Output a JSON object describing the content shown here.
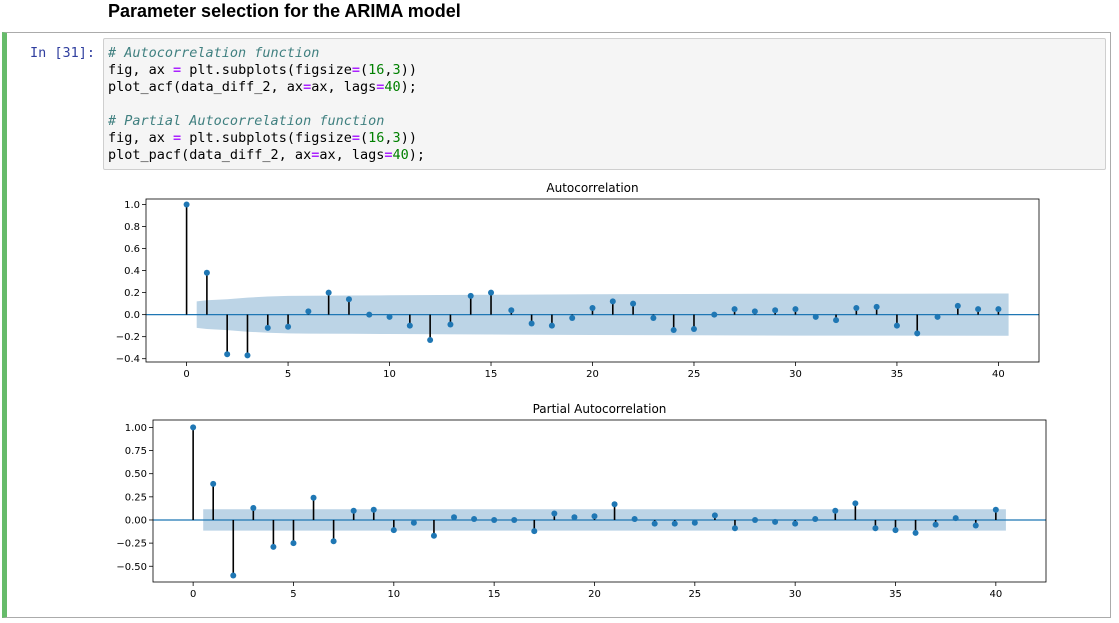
{
  "heading": "Parameter selection for the ARIMA model",
  "cell": {
    "prompt": "In [31]:",
    "code_lines": [
      [
        {
          "t": "# Autocorrelation function",
          "c": "comment"
        }
      ],
      [
        {
          "t": "fig, ax "
        },
        {
          "t": "=",
          "c": "op"
        },
        {
          "t": " plt.subplots(figsize"
        },
        {
          "t": "=",
          "c": "op"
        },
        {
          "t": "("
        },
        {
          "t": "16",
          "c": "num"
        },
        {
          "t": ","
        },
        {
          "t": "3",
          "c": "num"
        },
        {
          "t": "))"
        }
      ],
      [
        {
          "t": "plot_acf(data_diff_2, ax"
        },
        {
          "t": "=",
          "c": "op"
        },
        {
          "t": "ax, lags"
        },
        {
          "t": "=",
          "c": "op"
        },
        {
          "t": "40",
          "c": "num"
        },
        {
          "t": ");"
        }
      ],
      [],
      [
        {
          "t": "# Partial Autocorrelation function",
          "c": "comment"
        }
      ],
      [
        {
          "t": "fig, ax "
        },
        {
          "t": "=",
          "c": "op"
        },
        {
          "t": " plt.subplots(figsize"
        },
        {
          "t": "=",
          "c": "op"
        },
        {
          "t": "("
        },
        {
          "t": "16",
          "c": "num"
        },
        {
          "t": ","
        },
        {
          "t": "3",
          "c": "num"
        },
        {
          "t": "))"
        }
      ],
      [
        {
          "t": "plot_pacf(data_diff_2, ax"
        },
        {
          "t": "=",
          "c": "op"
        },
        {
          "t": "ax, lags"
        },
        {
          "t": "=",
          "c": "op"
        },
        {
          "t": "40",
          "c": "num"
        },
        {
          "t": ");"
        }
      ]
    ]
  },
  "colors": {
    "stem": "#000000",
    "marker": "#1f77b4",
    "band": "#bcd4e6",
    "zero_line": "#1f77b4"
  },
  "chart_data": [
    {
      "type": "scatter",
      "title": "Autocorrelation",
      "xlim": [
        -2,
        42
      ],
      "ylim": [
        -0.43,
        1.05
      ],
      "xticks": [
        0,
        5,
        10,
        15,
        20,
        25,
        30,
        35,
        40
      ],
      "yticks": [
        -0.4,
        -0.2,
        0.0,
        0.2,
        0.4,
        0.6,
        0.8,
        1.0
      ],
      "ytick_labels": [
        "−0.4",
        "−0.2",
        "0.0",
        "0.2",
        "0.4",
        "0.6",
        "0.8",
        "1.0"
      ],
      "x": [
        0,
        1,
        2,
        3,
        4,
        5,
        6,
        7,
        8,
        9,
        10,
        11,
        12,
        13,
        14,
        15,
        16,
        17,
        18,
        19,
        20,
        21,
        22,
        23,
        24,
        25,
        26,
        27,
        28,
        29,
        30,
        31,
        32,
        33,
        34,
        35,
        36,
        37,
        38,
        39,
        40
      ],
      "values": [
        1.0,
        0.38,
        -0.36,
        -0.37,
        -0.12,
        -0.11,
        0.03,
        0.2,
        0.14,
        0.0,
        -0.02,
        -0.1,
        -0.23,
        -0.09,
        0.17,
        0.2,
        0.04,
        -0.08,
        -0.1,
        -0.03,
        0.06,
        0.12,
        0.1,
        -0.03,
        -0.14,
        -0.13,
        0.0,
        0.05,
        0.03,
        0.04,
        0.05,
        -0.02,
        -0.05,
        0.06,
        0.07,
        -0.1,
        -0.17,
        -0.02,
        0.08,
        0.05,
        0.05
      ],
      "confidence_band": {
        "x": [
          0.5,
          1,
          2,
          3,
          4,
          5,
          6,
          8,
          10,
          15,
          20,
          25,
          30,
          35,
          40,
          40.5
        ],
        "upper": [
          0.12,
          0.13,
          0.14,
          0.155,
          0.165,
          0.17,
          0.172,
          0.174,
          0.176,
          0.18,
          0.185,
          0.187,
          0.19,
          0.19,
          0.192,
          0.192
        ]
      }
    },
    {
      "type": "scatter",
      "title": "Partial Autocorrelation",
      "xlim": [
        -2,
        42.5
      ],
      "ylim": [
        -0.67,
        1.08
      ],
      "xticks": [
        0,
        5,
        10,
        15,
        20,
        25,
        30,
        35,
        40
      ],
      "yticks": [
        -0.5,
        -0.25,
        0.0,
        0.25,
        0.5,
        0.75,
        1.0
      ],
      "ytick_labels": [
        "−0.50",
        "−0.25",
        "0.00",
        "0.25",
        "0.50",
        "0.75",
        "1.00"
      ],
      "x": [
        0,
        1,
        2,
        3,
        4,
        5,
        6,
        7,
        8,
        9,
        10,
        11,
        12,
        13,
        14,
        15,
        16,
        17,
        18,
        19,
        20,
        21,
        22,
        23,
        24,
        25,
        26,
        27,
        28,
        29,
        30,
        31,
        32,
        33,
        34,
        35,
        36,
        37,
        38,
        39,
        40
      ],
      "values": [
        1.0,
        0.39,
        -0.6,
        0.13,
        -0.29,
        -0.25,
        0.24,
        -0.23,
        0.1,
        0.11,
        -0.11,
        -0.03,
        -0.17,
        0.03,
        0.01,
        0.0,
        0.0,
        -0.12,
        0.07,
        0.03,
        0.04,
        0.17,
        0.01,
        -0.04,
        -0.04,
        -0.03,
        0.05,
        -0.09,
        0.0,
        -0.02,
        -0.04,
        0.01,
        0.1,
        0.18,
        -0.09,
        -0.11,
        -0.14,
        -0.05,
        0.02,
        -0.06,
        0.11
      ],
      "confidence_band": {
        "x": [
          0.5,
          40.5
        ],
        "upper": [
          0.115,
          0.115
        ]
      }
    }
  ]
}
